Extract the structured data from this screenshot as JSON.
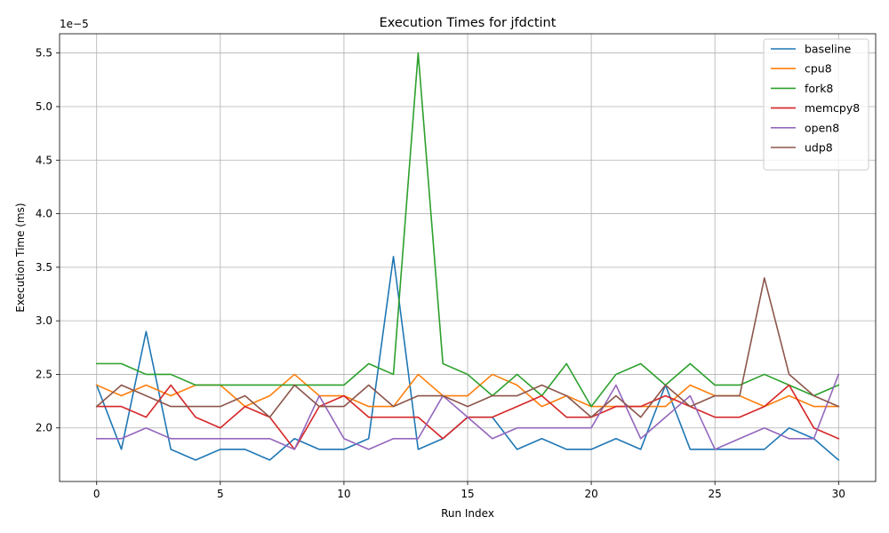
{
  "chart_data": {
    "type": "line",
    "title": "Execution Times for jfdctint",
    "xlabel": "Run Index",
    "ylabel": "Execution Time (ms)",
    "y_offset_label": "1e−5",
    "y_scale": 1e-05,
    "xlim": [
      -1.5,
      31.5
    ],
    "ylim": [
      1.5,
      5.68
    ],
    "x_ticks": [
      0,
      5,
      10,
      15,
      20,
      25,
      30
    ],
    "y_ticks": [
      2.0,
      2.5,
      3.0,
      3.5,
      4.0,
      4.5,
      5.0,
      5.5
    ],
    "y_tick_labels": [
      "2.0",
      "2.5",
      "3.0",
      "3.5",
      "4.0",
      "4.5",
      "5.0",
      "5.5"
    ],
    "grid": true,
    "legend_position": "top-right",
    "x": [
      0,
      1,
      2,
      3,
      4,
      5,
      6,
      7,
      8,
      9,
      10,
      11,
      12,
      13,
      14,
      15,
      16,
      17,
      18,
      19,
      20,
      21,
      22,
      23,
      24,
      25,
      26,
      27,
      28,
      29,
      30
    ],
    "series": [
      {
        "name": "baseline",
        "color": "#1f77b4",
        "values": [
          2.4,
          1.8,
          2.9,
          1.8,
          1.7,
          1.8,
          1.8,
          1.7,
          1.9,
          1.8,
          1.8,
          1.9,
          3.6,
          1.8,
          1.9,
          2.1,
          2.1,
          1.8,
          1.9,
          1.8,
          1.8,
          1.9,
          1.8,
          2.4,
          1.8,
          1.8,
          1.8,
          1.8,
          2.0,
          1.9,
          1.7
        ]
      },
      {
        "name": "cpu8",
        "color": "#ff7f0e",
        "values": [
          2.4,
          2.3,
          2.4,
          2.3,
          2.4,
          2.4,
          2.2,
          2.3,
          2.5,
          2.3,
          2.3,
          2.2,
          2.2,
          2.5,
          2.3,
          2.3,
          2.5,
          2.4,
          2.2,
          2.3,
          2.2,
          2.2,
          2.2,
          2.2,
          2.4,
          2.3,
          2.3,
          2.2,
          2.3,
          2.2,
          2.2
        ]
      },
      {
        "name": "fork8",
        "color": "#2ca02c",
        "values": [
          2.6,
          2.6,
          2.5,
          2.5,
          2.4,
          2.4,
          2.4,
          2.4,
          2.4,
          2.4,
          2.4,
          2.6,
          2.5,
          5.5,
          2.6,
          2.5,
          2.3,
          2.5,
          2.3,
          2.6,
          2.2,
          2.5,
          2.6,
          2.4,
          2.6,
          2.4,
          2.4,
          2.5,
          2.4,
          2.3,
          2.4
        ]
      },
      {
        "name": "memcpy8",
        "color": "#d62728",
        "values": [
          2.2,
          2.2,
          2.1,
          2.4,
          2.1,
          2.0,
          2.2,
          2.1,
          1.8,
          2.2,
          2.3,
          2.1,
          2.1,
          2.1,
          1.9,
          2.1,
          2.1,
          2.2,
          2.3,
          2.1,
          2.1,
          2.2,
          2.2,
          2.3,
          2.2,
          2.1,
          2.1,
          2.2,
          2.4,
          2.0,
          1.9
        ]
      },
      {
        "name": "open8",
        "color": "#9467bd",
        "values": [
          1.9,
          1.9,
          2.0,
          1.9,
          1.9,
          1.9,
          1.9,
          1.9,
          1.8,
          2.3,
          1.9,
          1.8,
          1.9,
          1.9,
          2.3,
          2.1,
          1.9,
          2.0,
          2.0,
          2.0,
          2.0,
          2.4,
          1.9,
          2.1,
          2.3,
          1.8,
          1.9,
          2.0,
          1.9,
          1.9,
          2.5
        ]
      },
      {
        "name": "udp8",
        "color": "#8c564b",
        "values": [
          2.2,
          2.4,
          2.3,
          2.2,
          2.2,
          2.2,
          2.3,
          2.1,
          2.4,
          2.2,
          2.2,
          2.4,
          2.2,
          2.3,
          2.3,
          2.2,
          2.3,
          2.3,
          2.4,
          2.3,
          2.1,
          2.3,
          2.1,
          2.4,
          2.2,
          2.3,
          2.3,
          3.4,
          2.5,
          2.3,
          2.2
        ]
      }
    ]
  }
}
